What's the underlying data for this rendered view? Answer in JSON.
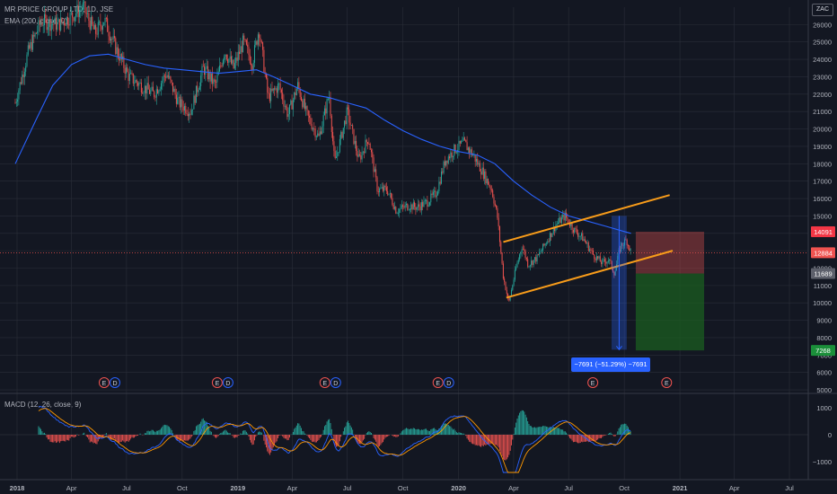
{
  "header": {
    "title": "MR PRICE GROUP LTD, 1D, JSE",
    "ema_label": "EMA (200, close, 0)",
    "currency_badge": "ZAC"
  },
  "macd": {
    "label": "MACD (12, 26, close, 9)",
    "ticks": [
      1000,
      0,
      -1000
    ],
    "tick_labels": [
      "1000",
      "0",
      "−1000"
    ],
    "ylim": [
      -1500,
      1500
    ]
  },
  "measure_label": "−7691 (−51.29%) −7691",
  "colors": {
    "background": "#131722",
    "grid": "#2a2e39",
    "up": "#26a69a",
    "down": "#ef5350",
    "ema": "#2962ff",
    "channel": "#f89c1a",
    "stop_zone": "#ef5350",
    "target_zone": "#1b5e20",
    "measure": "#2962ff",
    "macd_line": "#2962ff",
    "signal_line": "#ff9800"
  },
  "chart_data": {
    "type": "candlestick",
    "y_ticks": [
      26000,
      25000,
      24000,
      23000,
      22000,
      21000,
      20000,
      19000,
      18000,
      17000,
      16000,
      15000,
      14000,
      13000,
      12000,
      11000,
      10000,
      9000,
      8000,
      7000,
      6000,
      5000
    ],
    "x_ticks": [
      "2018",
      "Apr",
      "Jul",
      "Oct",
      "2019",
      "Apr",
      "Jul",
      "Oct",
      "2020",
      "Apr",
      "Jul",
      "Oct",
      "2021",
      "Apr",
      "Jul"
    ],
    "ylim": [
      4900,
      27000
    ],
    "price_path": [
      [
        "2017-12-29",
        21500
      ],
      [
        "2018-01-20",
        24500
      ],
      [
        "2018-02-10",
        26200
      ],
      [
        "2018-03-10",
        26000
      ],
      [
        "2018-04-01",
        26500
      ],
      [
        "2018-04-20",
        27000
      ],
      [
        "2018-05-10",
        25500
      ],
      [
        "2018-05-25",
        26300
      ],
      [
        "2018-06-15",
        24500
      ],
      [
        "2018-07-05",
        23000
      ],
      [
        "2018-07-25",
        22500
      ],
      [
        "2018-08-15",
        22000
      ],
      [
        "2018-09-05",
        23200
      ],
      [
        "2018-09-25",
        21500
      ],
      [
        "2018-10-15",
        21000
      ],
      [
        "2018-11-05",
        23500
      ],
      [
        "2018-11-25",
        22500
      ],
      [
        "2018-12-10",
        24500
      ],
      [
        "2018-12-25",
        23500
      ],
      [
        "2019-01-10",
        25000
      ],
      [
        "2019-01-25",
        23800
      ],
      [
        "2019-02-05",
        25800
      ],
      [
        "2019-02-20",
        21800
      ],
      [
        "2019-03-10",
        22500
      ],
      [
        "2019-03-25",
        20800
      ],
      [
        "2019-04-10",
        22500
      ],
      [
        "2019-04-25",
        20800
      ],
      [
        "2019-05-15",
        19500
      ],
      [
        "2019-06-01",
        22000
      ],
      [
        "2019-06-10",
        18000
      ],
      [
        "2019-07-01",
        21000
      ],
      [
        "2019-07-20",
        18200
      ],
      [
        "2019-08-05",
        19500
      ],
      [
        "2019-08-20",
        16500
      ],
      [
        "2019-09-05",
        16500
      ],
      [
        "2019-09-20",
        15300
      ],
      [
        "2019-10-10",
        15600
      ],
      [
        "2019-10-25",
        15500
      ],
      [
        "2019-11-10",
        15800
      ],
      [
        "2019-11-25",
        16300
      ],
      [
        "2019-12-10",
        18200
      ],
      [
        "2019-12-25",
        18800
      ],
      [
        "2020-01-10",
        19200
      ],
      [
        "2020-01-25",
        18500
      ],
      [
        "2020-02-10",
        17500
      ],
      [
        "2020-02-25",
        16500
      ],
      [
        "2020-03-05",
        15000
      ],
      [
        "2020-03-15",
        11500
      ],
      [
        "2020-03-24",
        10000
      ],
      [
        "2020-04-05",
        12000
      ],
      [
        "2020-04-15",
        13300
      ],
      [
        "2020-04-25",
        12200
      ],
      [
        "2020-05-10",
        12600
      ],
      [
        "2020-05-25",
        13500
      ],
      [
        "2020-06-10",
        14500
      ],
      [
        "2020-06-25",
        15000
      ],
      [
        "2020-07-10",
        14200
      ],
      [
        "2020-07-25",
        13700
      ],
      [
        "2020-08-10",
        12800
      ],
      [
        "2020-08-25",
        12300
      ],
      [
        "2020-09-05",
        12500
      ],
      [
        "2020-09-15",
        11700
      ],
      [
        "2020-09-25",
        13300
      ],
      [
        "2020-10-05",
        13600
      ],
      [
        "2020-10-12",
        12900
      ]
    ],
    "ema_path": [
      [
        "2017-12-29",
        18000
      ],
      [
        "2018-02-01",
        20500
      ],
      [
        "2018-03-01",
        22500
      ],
      [
        "2018-04-01",
        23700
      ],
      [
        "2018-05-01",
        24200
      ],
      [
        "2018-06-01",
        24300
      ],
      [
        "2018-07-01",
        24000
      ],
      [
        "2018-08-01",
        23700
      ],
      [
        "2018-09-01",
        23500
      ],
      [
        "2018-10-01",
        23400
      ],
      [
        "2018-11-01",
        23300
      ],
      [
        "2018-12-01",
        23200
      ],
      [
        "2019-01-01",
        23300
      ],
      [
        "2019-02-01",
        23400
      ],
      [
        "2019-03-01",
        23000
      ],
      [
        "2019-04-01",
        22500
      ],
      [
        "2019-05-01",
        22000
      ],
      [
        "2019-06-01",
        21800
      ],
      [
        "2019-07-01",
        21500
      ],
      [
        "2019-08-01",
        21200
      ],
      [
        "2019-09-01",
        20500
      ],
      [
        "2019-10-01",
        19900
      ],
      [
        "2019-11-01",
        19400
      ],
      [
        "2019-12-01",
        19000
      ],
      [
        "2020-01-01",
        18700
      ],
      [
        "2020-02-01",
        18500
      ],
      [
        "2020-03-01",
        18000
      ],
      [
        "2020-04-01",
        17000
      ],
      [
        "2020-05-01",
        16200
      ],
      [
        "2020-06-01",
        15500
      ],
      [
        "2020-07-01",
        15000
      ],
      [
        "2020-08-01",
        14700
      ],
      [
        "2020-09-01",
        14400
      ],
      [
        "2020-10-01",
        14100
      ],
      [
        "2020-10-12",
        14000
      ]
    ],
    "channel_upper": [
      [
        "2020-03-15",
        13500
      ],
      [
        "2020-12-15",
        16200
      ]
    ],
    "channel_lower": [
      [
        "2020-03-20",
        10300
      ],
      [
        "2020-12-20",
        13000
      ]
    ],
    "price_labels": [
      {
        "value": 14091,
        "label": "14091",
        "color": "#f23645"
      },
      {
        "value": 12884,
        "label": "12884",
        "color": "#ef5350"
      },
      {
        "value": 11689,
        "label": "11689",
        "color": "#5d606b"
      },
      {
        "value": 7268,
        "label": "7268",
        "color": "#1b8f3a"
      }
    ],
    "position": {
      "entry": 11689,
      "stop": 14091,
      "target": 7268,
      "start": "2020-10-20",
      "end": "2021-02-10"
    },
    "measure": {
      "start": "2020-09-10",
      "end": "2020-10-05",
      "from": 15000,
      "to": 7309
    },
    "events": [
      {
        "date": "2018-05-25",
        "labels": [
          "E",
          "D"
        ]
      },
      {
        "date": "2018-11-28",
        "labels": [
          "E",
          "D"
        ]
      },
      {
        "date": "2019-05-25",
        "labels": [
          "E",
          "D"
        ]
      },
      {
        "date": "2019-11-28",
        "labels": [
          "E",
          "D"
        ]
      },
      {
        "date": "2020-08-10",
        "labels": [
          "E"
        ]
      },
      {
        "date": "2020-12-10",
        "labels": [
          "E"
        ]
      }
    ]
  }
}
